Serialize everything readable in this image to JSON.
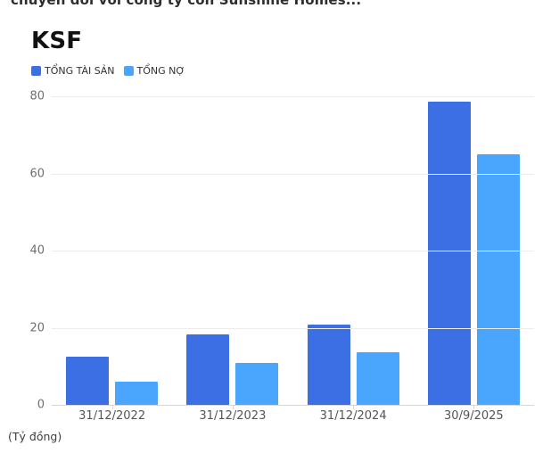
{
  "headline": {
    "text": "chuyển đổi với công ty con Sunshine Homes..."
  },
  "chart": {
    "title": "KSF",
    "unit_label": "(Tỷ đồng)"
  },
  "chart_data": {
    "type": "bar",
    "title": "KSF",
    "categories": [
      "31/12/2022",
      "31/12/2023",
      "31/12/2024",
      "30/9/2025"
    ],
    "series": [
      {
        "name": "TỔNG TÀI SẢN",
        "color": "#3b6fe3",
        "values": [
          12.6,
          18.2,
          20.7,
          78.7
        ]
      },
      {
        "name": "TỔNG NỢ",
        "color": "#4aa6fc",
        "values": [
          6.0,
          10.9,
          13.6,
          64.9
        ]
      }
    ],
    "xlabel": "",
    "ylabel": "(Tỷ đồng)",
    "ylim": [
      0,
      80
    ],
    "yticks": [
      0,
      20,
      40,
      60,
      80
    ],
    "grid": true,
    "legend_position": "top-left"
  },
  "colors": {
    "series_tong_tai_san": "#3b6fe3",
    "series_tong_no": "#4aa6fc",
    "gridline": "#ececec",
    "axis_line": "#d6d6d6"
  }
}
